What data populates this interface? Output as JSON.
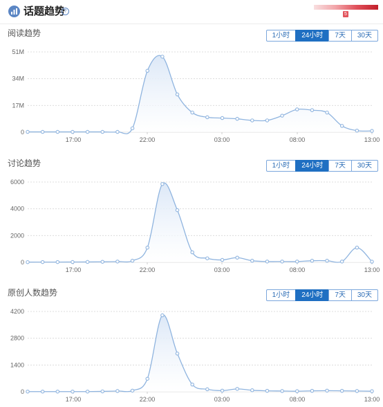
{
  "header": {
    "title": "话题趋势",
    "help_icon": "?",
    "heat_marker": "5"
  },
  "colors": {
    "line": "#8fb4df",
    "fill_top": "#dce8f7",
    "grid": "#dcdcdc",
    "accent": "#1f6fc2"
  },
  "sections": [
    {
      "title": "阅读趋势",
      "buttons": [
        "1小时",
        "24小时",
        "7天",
        "30天"
      ],
      "active": 1
    },
    {
      "title": "讨论趋势",
      "buttons": [
        "1小时",
        "24小时",
        "7天",
        "30天"
      ],
      "active": 1
    },
    {
      "title": "原创人数趋势",
      "buttons": [
        "1小时",
        "24小时",
        "7天",
        "30天"
      ],
      "active": 1
    }
  ],
  "chart_data": [
    {
      "type": "area",
      "title": "阅读趋势",
      "x_ticks": [
        "17:00",
        "22:00",
        "03:00",
        "08:00",
        "13:00"
      ],
      "y_ticks": [
        "0",
        "17M",
        "34M",
        "51M"
      ],
      "ylim": [
        0,
        51
      ],
      "series": [
        {
          "values": [
            0.2,
            0.2,
            0.2,
            0.2,
            0.2,
            0.2,
            0.2,
            2.5,
            39,
            48,
            24,
            12.5,
            9.5,
            9,
            8.5,
            7.5,
            7.5,
            10.5,
            14.5,
            14,
            12.5,
            4,
            1,
            0.8
          ]
        }
      ]
    },
    {
      "type": "area",
      "title": "讨论趋势",
      "x_ticks": [
        "17:00",
        "22:00",
        "03:00",
        "08:00",
        "13:00"
      ],
      "y_ticks": [
        "0",
        "2000",
        "4000",
        "6000"
      ],
      "ylim": [
        0,
        6000
      ],
      "series": [
        {
          "values": [
            15,
            20,
            20,
            25,
            30,
            40,
            60,
            120,
            1100,
            5850,
            3900,
            750,
            300,
            180,
            350,
            120,
            60,
            60,
            60,
            120,
            120,
            60,
            1100,
            50
          ]
        }
      ]
    },
    {
      "type": "area",
      "title": "原创人数趋势",
      "x_ticks": [
        "17:00",
        "22:00",
        "03:00",
        "08:00",
        "13:00"
      ],
      "y_ticks": [
        "0",
        "1400",
        "2800",
        "4200"
      ],
      "ylim": [
        0,
        4200
      ],
      "series": [
        {
          "values": [
            10,
            10,
            10,
            10,
            10,
            20,
            40,
            60,
            680,
            4000,
            2000,
            380,
            130,
            60,
            150,
            80,
            50,
            40,
            30,
            50,
            60,
            50,
            40,
            30
          ]
        }
      ]
    }
  ]
}
